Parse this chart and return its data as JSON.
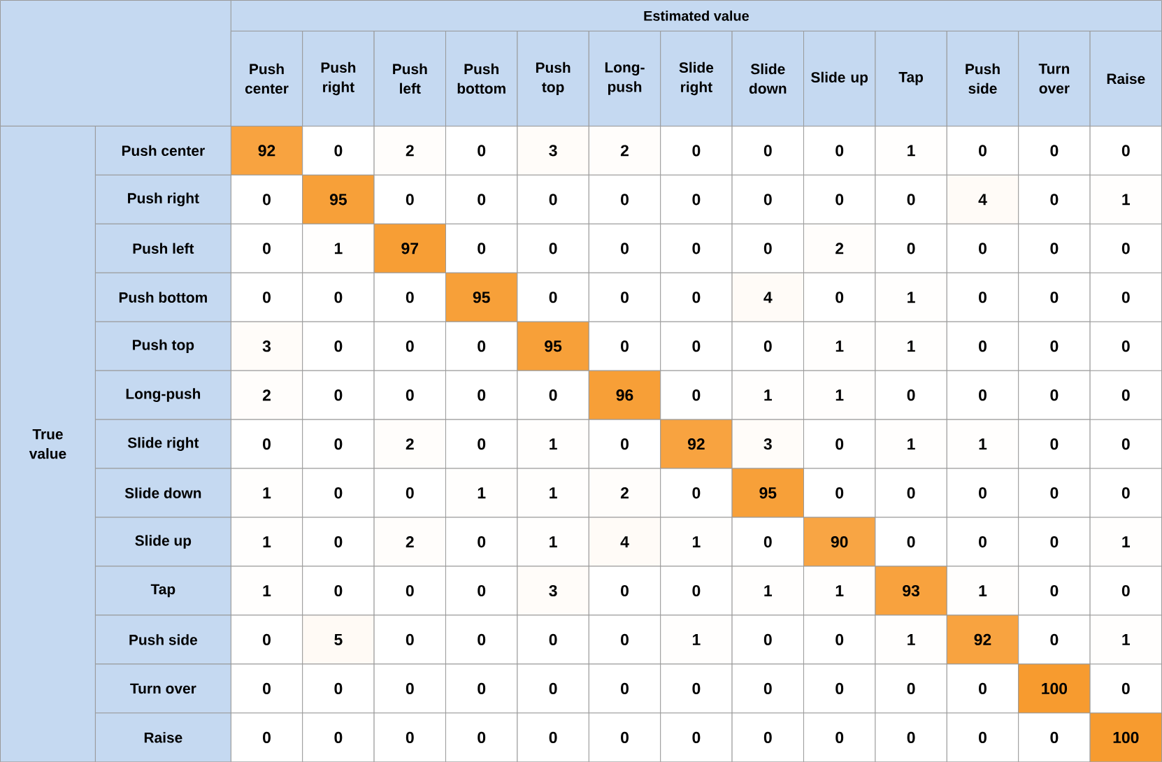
{
  "chart_data": {
    "type": "heatmap",
    "data_labels": true,
    "xlabel": "Estimated value",
    "ylabel": "True value",
    "color": "#f79b2f",
    "categories": [
      "Push center",
      "Push right",
      "Push left",
      "Push bottom",
      "Push top",
      "Long-push",
      "Slide right",
      "Slide down",
      "Slide up",
      "Tap",
      "Push side",
      "Turn over",
      "Raise"
    ],
    "y_categories": [
      "Push center",
      "Push right",
      "Push left",
      "Push bottom",
      "Push top",
      "Long-push",
      "Slide right",
      "Slide down",
      "Slide up",
      "Tap",
      "Push side",
      "Turn over",
      "Raise"
    ],
    "cells": [
      [
        92,
        0,
        2,
        0,
        3,
        2,
        0,
        0,
        0,
        1,
        0,
        0,
        0
      ],
      [
        0,
        95,
        0,
        0,
        0,
        0,
        0,
        0,
        0,
        0,
        4,
        0,
        1
      ],
      [
        0,
        1,
        97,
        0,
        0,
        0,
        0,
        0,
        2,
        0,
        0,
        0,
        0
      ],
      [
        0,
        0,
        0,
        95,
        0,
        0,
        0,
        4,
        0,
        1,
        0,
        0,
        0
      ],
      [
        3,
        0,
        0,
        0,
        95,
        0,
        0,
        0,
        1,
        1,
        0,
        0,
        0
      ],
      [
        2,
        0,
        0,
        0,
        0,
        96,
        0,
        1,
        1,
        0,
        0,
        0,
        0
      ],
      [
        0,
        0,
        2,
        0,
        1,
        0,
        92,
        3,
        0,
        1,
        1,
        0,
        0
      ],
      [
        1,
        0,
        0,
        1,
        1,
        2,
        0,
        95,
        0,
        0,
        0,
        0,
        0
      ],
      [
        1,
        0,
        2,
        0,
        1,
        4,
        1,
        0,
        90,
        0,
        0,
        0,
        1
      ],
      [
        1,
        0,
        0,
        0,
        3,
        0,
        0,
        1,
        1,
        93,
        1,
        0,
        0
      ],
      [
        0,
        5,
        0,
        0,
        0,
        0,
        1,
        0,
        0,
        1,
        92,
        0,
        1
      ],
      [
        0,
        0,
        0,
        0,
        0,
        0,
        0,
        0,
        0,
        0,
        0,
        100,
        0
      ],
      [
        0,
        0,
        0,
        0,
        0,
        0,
        0,
        0,
        0,
        0,
        0,
        0,
        100
      ]
    ]
  }
}
